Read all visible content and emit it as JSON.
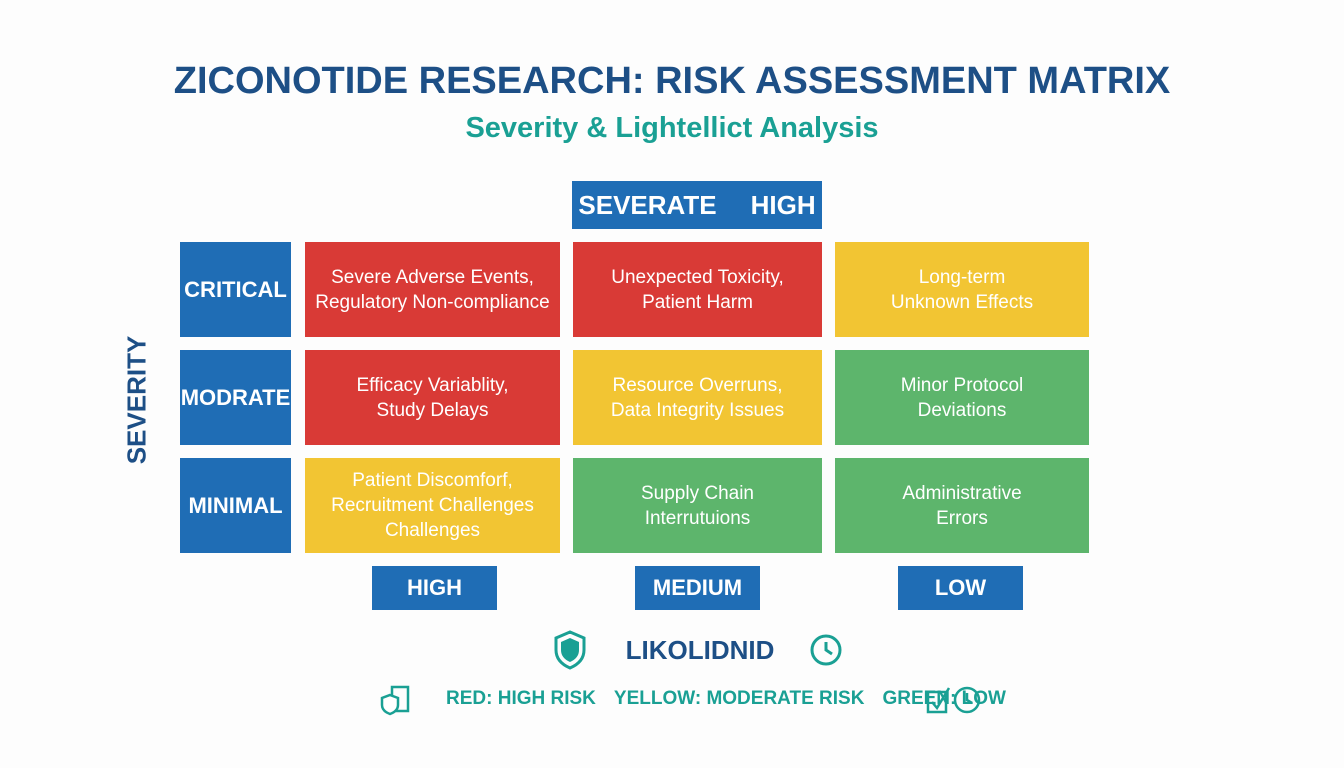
{
  "header": {
    "title": "ZICONOTIDE RESEARCH: RISK ASSESSMENT MATRIX",
    "subtitle": "Severity & Lightellict Analysis"
  },
  "matrix": {
    "top_header": [
      "SEVERATE",
      "HIGH"
    ],
    "y_axis_label": "SEVERITY",
    "row_labels": [
      "CRITICAL",
      "MODRATE",
      "MINIMAL"
    ],
    "column_labels": [
      "HIGH",
      "MEDIUM",
      "LOW"
    ],
    "x_axis_label": "LIKOLIDNID",
    "rows": [
      [
        {
          "lines": [
            "Severe Adverse Events,",
            "Regulatory Non-compliance"
          ],
          "color": "#d93a36"
        },
        {
          "lines": [
            "Unexpected Toxicity,",
            "Patient Harm"
          ],
          "color": "#d93a36"
        },
        {
          "lines": [
            "Long-term",
            "Unknown Effects"
          ],
          "color": "#f2c533"
        }
      ],
      [
        {
          "lines": [
            "Efficacy Variablity,",
            "Study Delays"
          ],
          "color": "#d93a36"
        },
        {
          "lines": [
            "Resource Overruns,",
            "Data Integrity Issues"
          ],
          "color": "#f2c533"
        },
        {
          "lines": [
            "Minor Protocol",
            "Deviations"
          ],
          "color": "#5db56c"
        }
      ],
      [
        {
          "lines": [
            "Patient Discomforf,",
            "Recruitment Challenges",
            "Challenges"
          ],
          "color": "#f2c533"
        },
        {
          "lines": [
            "Supply Chain",
            "Interrutuions"
          ],
          "color": "#5db56c"
        },
        {
          "lines": [
            "Administrative",
            "Errors"
          ],
          "color": "#5db56c"
        }
      ]
    ]
  },
  "legend": [
    "RED: HIGH RISK",
    "YELLOW: MODERATE RISK",
    "GREEN: LOW"
  ]
}
